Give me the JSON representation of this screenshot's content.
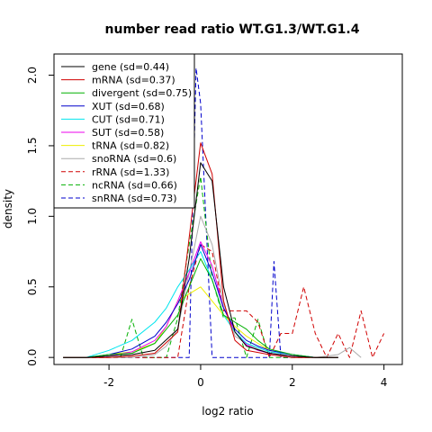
{
  "chart_data": {
    "type": "line",
    "title": "number read ratio WT.G1.3/WT.G1.4",
    "xlabel": "log2 ratio",
    "ylabel": "density",
    "xlim": [
      -3.2,
      4.4
    ],
    "ylim": [
      -0.05,
      2.15
    ],
    "x_ticks": [
      -2,
      0,
      2,
      4
    ],
    "y_ticks": [
      0.0,
      0.5,
      1.0,
      1.5,
      2.0
    ],
    "x_tick_labels": [
      "-2",
      "0",
      "2",
      "4"
    ],
    "y_tick_labels": [
      "0.0",
      "0.5",
      "1.0",
      "1.5",
      "2.0"
    ],
    "legend_position": "top-left",
    "grid": false,
    "series": [
      {
        "name": "gene (sd=0.44)",
        "color": "#000000",
        "dash": false,
        "x": [
          -3.0,
          -2.5,
          -2.0,
          -1.5,
          -1.0,
          -0.5,
          -0.25,
          0.0,
          0.25,
          0.5,
          0.75,
          1.0,
          1.5,
          2.0,
          2.5,
          3.0
        ],
        "y": [
          0.0,
          0.0,
          0.01,
          0.02,
          0.05,
          0.2,
          0.7,
          1.38,
          1.25,
          0.5,
          0.18,
          0.08,
          0.03,
          0.01,
          0.0,
          0.0
        ]
      },
      {
        "name": "mRNA (sd=0.37)",
        "color": "#d00000",
        "dash": false,
        "x": [
          -3.0,
          -2.5,
          -2.0,
          -1.5,
          -1.0,
          -0.5,
          -0.25,
          0.0,
          0.25,
          0.5,
          0.75,
          1.0,
          1.5,
          2.0,
          2.5,
          3.0
        ],
        "y": [
          0.0,
          0.0,
          0.0,
          0.01,
          0.03,
          0.18,
          0.85,
          1.52,
          1.3,
          0.4,
          0.12,
          0.05,
          0.02,
          0.0,
          0.0,
          0.0
        ]
      },
      {
        "name": "divergent (sd=0.75)",
        "color": "#00b000",
        "dash": false,
        "x": [
          -3.0,
          -2.5,
          -2.0,
          -1.5,
          -1.0,
          -0.75,
          -0.5,
          -0.25,
          0.0,
          0.25,
          0.5,
          0.75,
          1.0,
          1.25,
          1.5,
          2.0,
          2.5,
          3.0
        ],
        "y": [
          0.0,
          0.0,
          0.02,
          0.03,
          0.1,
          0.2,
          0.3,
          0.5,
          0.7,
          0.55,
          0.3,
          0.25,
          0.2,
          0.12,
          0.06,
          0.02,
          0.0,
          0.0
        ]
      },
      {
        "name": "XUT (sd=0.68)",
        "color": "#0000cc",
        "dash": false,
        "x": [
          -3.0,
          -2.5,
          -2.0,
          -1.5,
          -1.0,
          -0.75,
          -0.5,
          -0.25,
          0.0,
          0.25,
          0.5,
          0.75,
          1.0,
          1.25,
          1.5,
          2.0,
          2.5,
          3.0
        ],
        "y": [
          0.0,
          0.0,
          0.02,
          0.06,
          0.15,
          0.25,
          0.38,
          0.55,
          0.8,
          0.6,
          0.35,
          0.2,
          0.12,
          0.08,
          0.05,
          0.02,
          0.0,
          0.0
        ]
      },
      {
        "name": "CUT (sd=0.71)",
        "color": "#00e5ee",
        "dash": false,
        "x": [
          -3.0,
          -2.5,
          -2.0,
          -1.5,
          -1.0,
          -0.75,
          -0.5,
          -0.25,
          0.0,
          0.25,
          0.5,
          0.75,
          1.0,
          1.25,
          1.5,
          2.0,
          2.5,
          3.0
        ],
        "y": [
          0.0,
          0.0,
          0.05,
          0.12,
          0.25,
          0.35,
          0.5,
          0.62,
          0.75,
          0.55,
          0.3,
          0.18,
          0.1,
          0.07,
          0.04,
          0.02,
          0.0,
          0.0
        ]
      },
      {
        "name": "SUT (sd=0.58)",
        "color": "#ee00ee",
        "dash": false,
        "x": [
          -3.0,
          -2.5,
          -2.0,
          -1.5,
          -1.0,
          -0.75,
          -0.5,
          -0.25,
          0.0,
          0.25,
          0.5,
          0.75,
          1.0,
          1.25,
          1.5,
          2.0,
          2.5,
          3.0
        ],
        "y": [
          0.0,
          0.0,
          0.01,
          0.04,
          0.12,
          0.22,
          0.4,
          0.6,
          0.82,
          0.65,
          0.35,
          0.18,
          0.09,
          0.05,
          0.03,
          0.01,
          0.0,
          0.0
        ]
      },
      {
        "name": "tRNA (sd=0.82)",
        "color": "#eeee00",
        "dash": false,
        "x": [
          -3.0,
          -2.5,
          -2.0,
          -1.5,
          -1.0,
          -0.75,
          -0.5,
          -0.25,
          0.0,
          0.25,
          0.5,
          0.75,
          1.0,
          1.25,
          1.5,
          2.0,
          2.5,
          3.0
        ],
        "y": [
          0.0,
          0.0,
          0.02,
          0.04,
          0.1,
          0.22,
          0.4,
          0.45,
          0.5,
          0.4,
          0.3,
          0.22,
          0.15,
          0.1,
          0.05,
          0.02,
          0.0,
          0.0
        ]
      },
      {
        "name": "snoRNA (sd=0.6)",
        "color": "#aaaaaa",
        "dash": false,
        "x": [
          -3.0,
          -2.5,
          -2.0,
          -1.5,
          -1.0,
          -0.75,
          -0.5,
          -0.25,
          0.0,
          0.25,
          0.5,
          0.75,
          1.0,
          1.25,
          1.5,
          2.0,
          2.5,
          3.0,
          3.25,
          3.5
        ],
        "y": [
          0.0,
          0.0,
          0.0,
          0.0,
          0.02,
          0.08,
          0.2,
          0.6,
          1.0,
          0.8,
          0.38,
          0.15,
          0.1,
          0.06,
          0.03,
          0.0,
          0.0,
          0.02,
          0.07,
          0.0
        ]
      },
      {
        "name": "rRNA (sd=1.33)",
        "color": "#d00000",
        "dash": true,
        "x": [
          -3.0,
          -2.0,
          -1.0,
          -0.5,
          -0.25,
          0.0,
          0.25,
          0.5,
          0.75,
          1.0,
          1.25,
          1.5,
          1.75,
          2.0,
          2.25,
          2.5,
          2.75,
          3.0,
          3.25,
          3.5,
          3.75,
          4.0
        ],
        "y": [
          0.0,
          0.0,
          0.0,
          0.0,
          0.5,
          0.8,
          0.75,
          0.33,
          0.33,
          0.33,
          0.25,
          0.0,
          0.17,
          0.17,
          0.5,
          0.17,
          0.0,
          0.17,
          0.0,
          0.33,
          0.0,
          0.17
        ]
      },
      {
        "name": "ncRNA (sd=0.66)",
        "color": "#00b000",
        "dash": true,
        "x": [
          -3.0,
          -2.0,
          -1.75,
          -1.5,
          -1.25,
          -1.0,
          -0.75,
          -0.5,
          -0.25,
          0.0,
          0.25,
          0.5,
          0.75,
          1.0,
          1.25,
          1.5,
          2.0,
          3.0
        ],
        "y": [
          0.0,
          0.0,
          0.0,
          0.27,
          0.0,
          0.0,
          0.0,
          0.28,
          0.8,
          1.28,
          0.55,
          0.28,
          0.28,
          0.0,
          0.27,
          0.0,
          0.0,
          0.0
        ]
      },
      {
        "name": "snRNA (sd=0.73)",
        "color": "#0000cc",
        "dash": true,
        "x": [
          -3.0,
          -1.0,
          -0.5,
          -0.25,
          -0.1,
          0.0,
          0.25,
          0.5,
          0.75,
          1.0,
          1.25,
          1.5,
          1.6,
          1.75,
          2.0,
          3.0
        ],
        "y": [
          0.0,
          0.0,
          0.0,
          0.0,
          2.05,
          1.8,
          0.0,
          0.0,
          0.0,
          0.0,
          0.0,
          0.0,
          0.68,
          0.0,
          0.0,
          0.0
        ]
      }
    ]
  }
}
